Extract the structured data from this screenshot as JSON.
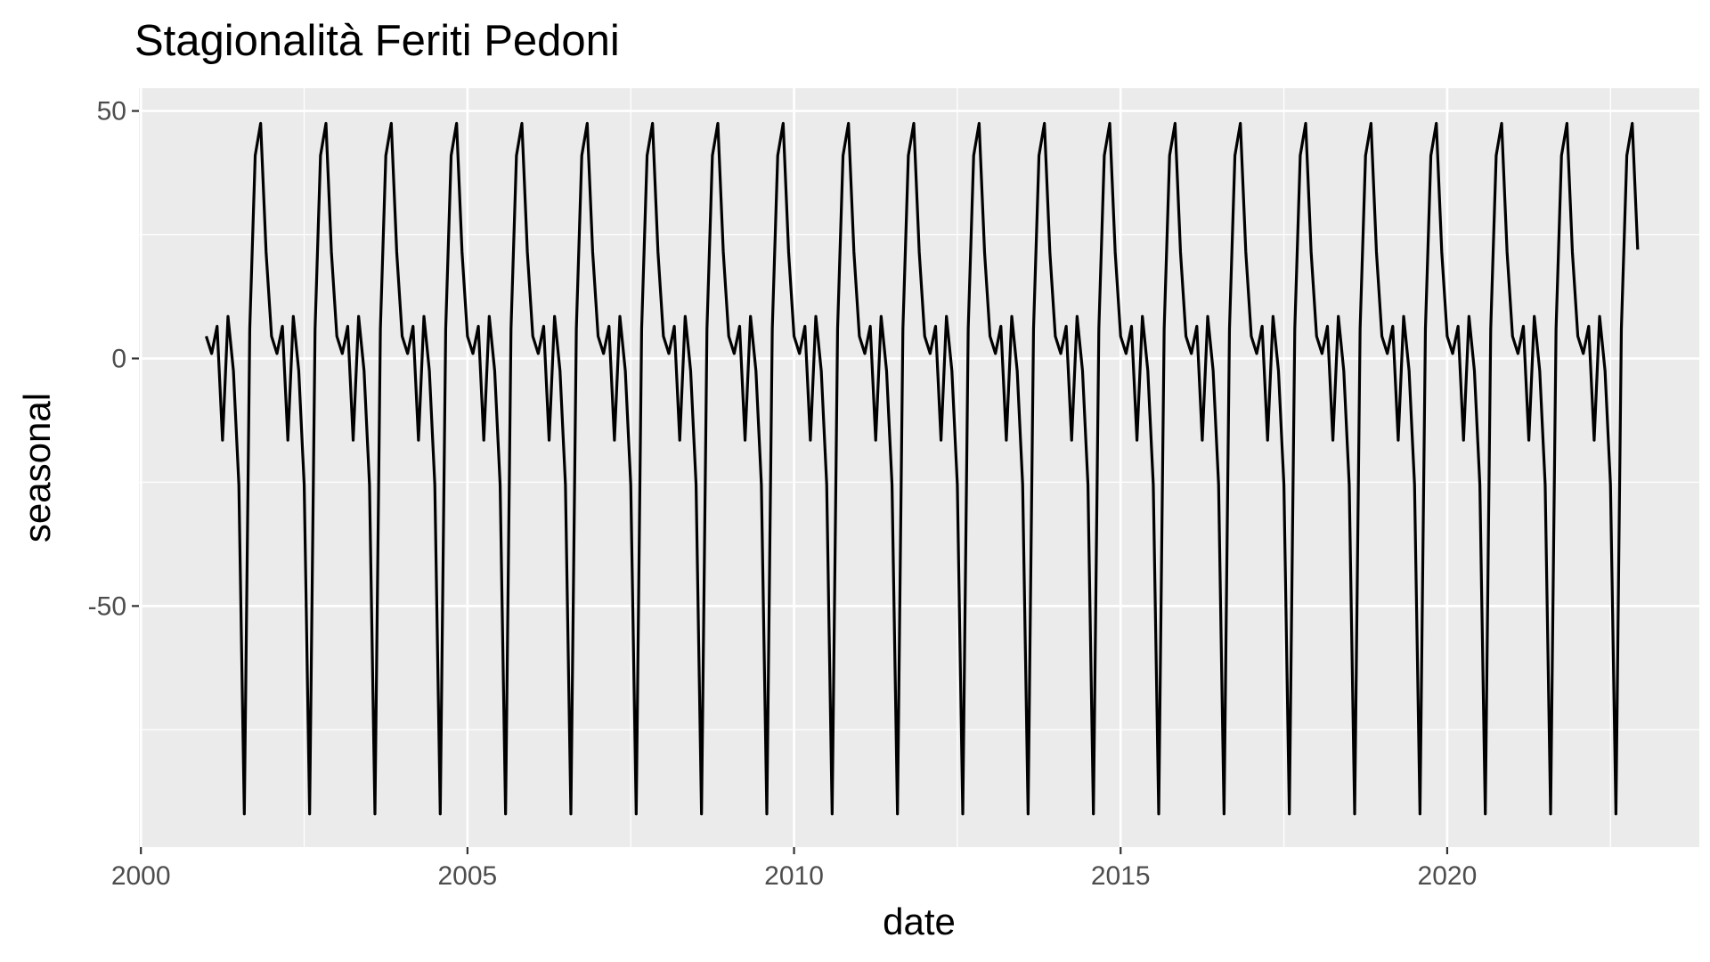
{
  "chart_data": {
    "type": "line",
    "title": "Stagionalità Feriti Pedoni",
    "xlabel": "date",
    "ylabel": "seasonal",
    "xlim": [
      1999.97,
      2023.86
    ],
    "ylim": [
      -98.7,
      54.6
    ],
    "x_ticks": [
      2000,
      2005,
      2010,
      2015,
      2020
    ],
    "x_tick_labels": [
      "2000",
      "2005",
      "2010",
      "2015",
      "2020"
    ],
    "y_ticks": [
      50,
      0,
      -50
    ],
    "y_tick_labels": [
      "50",
      "0",
      "-50"
    ],
    "x_minor_breaks": [
      2002.5,
      2007.5,
      2012.5,
      2017.5,
      2022.5
    ],
    "y_minor_breaks": [
      25,
      -25,
      -75
    ],
    "grid": true,
    "legend": "none",
    "panel_background": "#ebebeb",
    "grid_color": "#ffffff",
    "line_color": "#000000",
    "series": [
      {
        "start": 2001.0,
        "frequency": 12,
        "pattern": [
          4.5,
          1.0,
          6.5,
          -16.5,
          8.5,
          -2.5,
          -25.5,
          -92.0,
          6.0,
          41.0,
          47.5,
          21.5
        ],
        "x_end": 2022.917,
        "values_note_end": 22.0
      }
    ]
  }
}
